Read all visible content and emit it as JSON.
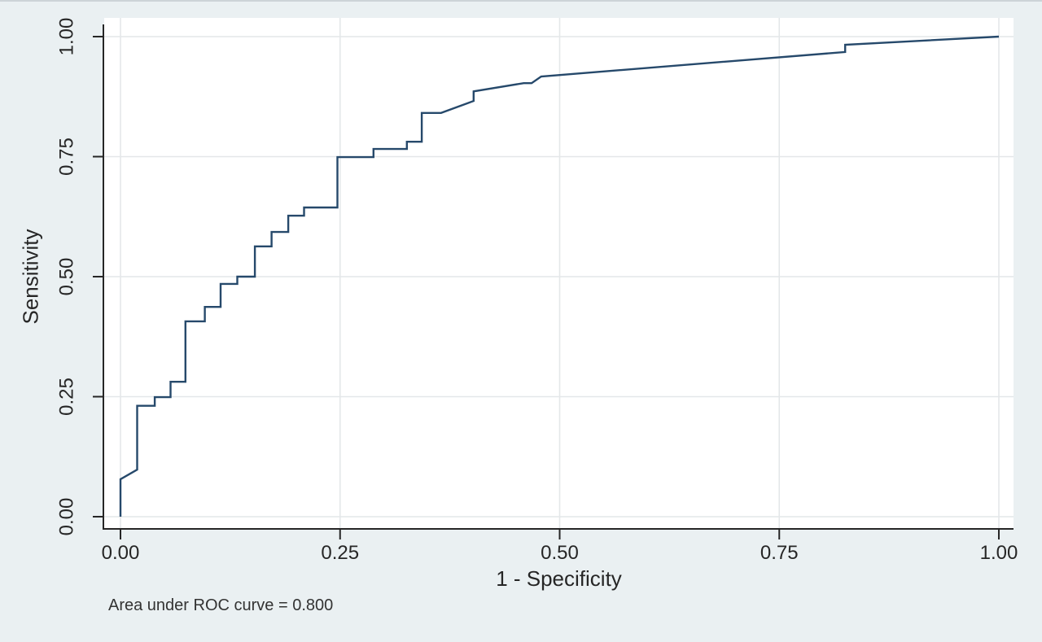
{
  "figure": {
    "background": "#eaf0f2",
    "plot_background": "#ffffff"
  },
  "chart_data": {
    "type": "line",
    "subtype": "roc-step-curve",
    "title": "",
    "xlabel": "1 - Specificity",
    "ylabel": "Sensitivity",
    "xlim": [
      0,
      1
    ],
    "ylim": [
      0,
      1
    ],
    "grid": true,
    "legend": "none",
    "x_ticks": [
      0,
      0.25,
      0.5,
      0.75,
      1
    ],
    "x_tick_labels": [
      "0.00",
      "0.25",
      "0.50",
      "0.75",
      "1.00"
    ],
    "y_ticks": [
      0,
      0.25,
      0.5,
      0.75,
      1
    ],
    "y_tick_labels": [
      "0.00",
      "0.25",
      "0.50",
      "0.75",
      "1.00"
    ],
    "annotation": "Area under ROC curve = 0.800",
    "auc_value": 0.8,
    "line_color": "#26496b",
    "axis_color": "#262626",
    "grid_color": "#e4e7e9",
    "series": [
      {
        "name": "ROC curve",
        "points": [
          [
            0.0,
            0.0
          ],
          [
            0.0,
            0.078
          ],
          [
            0.019,
            0.098
          ],
          [
            0.019,
            0.231
          ],
          [
            0.039,
            0.231
          ],
          [
            0.039,
            0.249
          ],
          [
            0.057,
            0.249
          ],
          [
            0.057,
            0.281
          ],
          [
            0.074,
            0.281
          ],
          [
            0.074,
            0.407
          ],
          [
            0.096,
            0.407
          ],
          [
            0.096,
            0.437
          ],
          [
            0.114,
            0.437
          ],
          [
            0.114,
            0.485
          ],
          [
            0.133,
            0.485
          ],
          [
            0.133,
            0.5
          ],
          [
            0.153,
            0.5
          ],
          [
            0.153,
            0.563
          ],
          [
            0.172,
            0.563
          ],
          [
            0.172,
            0.593
          ],
          [
            0.191,
            0.593
          ],
          [
            0.191,
            0.627
          ],
          [
            0.209,
            0.627
          ],
          [
            0.209,
            0.644
          ],
          [
            0.247,
            0.644
          ],
          [
            0.247,
            0.749
          ],
          [
            0.288,
            0.749
          ],
          [
            0.288,
            0.766
          ],
          [
            0.326,
            0.766
          ],
          [
            0.326,
            0.781
          ],
          [
            0.343,
            0.781
          ],
          [
            0.343,
            0.841
          ],
          [
            0.365,
            0.841
          ],
          [
            0.402,
            0.866
          ],
          [
            0.402,
            0.886
          ],
          [
            0.459,
            0.903
          ],
          [
            0.468,
            0.903
          ],
          [
            0.479,
            0.917
          ],
          [
            0.825,
            0.968
          ],
          [
            0.825,
            0.983
          ],
          [
            1.0,
            1.0
          ]
        ]
      }
    ]
  }
}
